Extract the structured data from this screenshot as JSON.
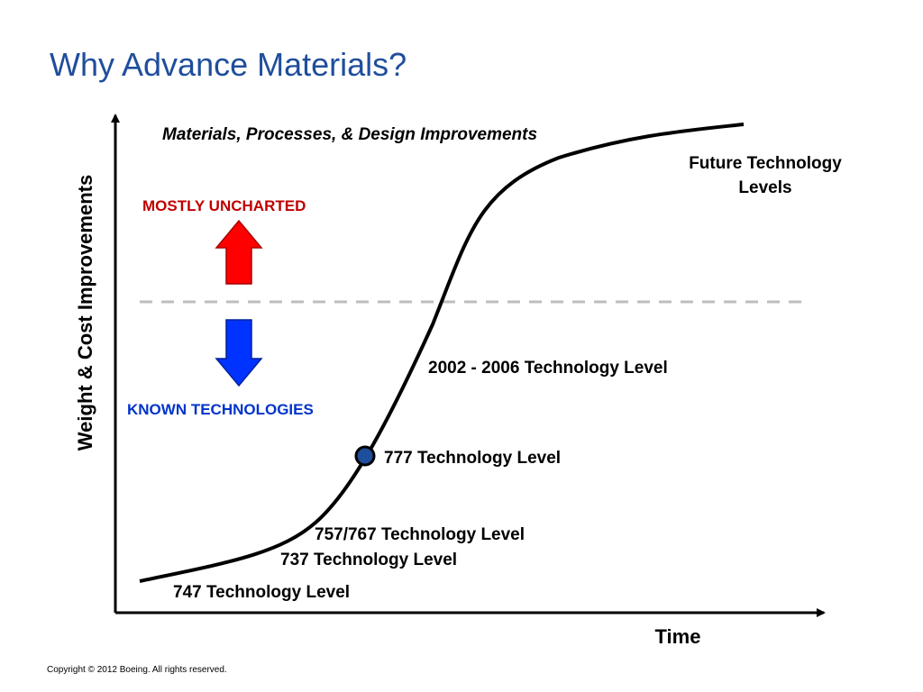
{
  "title": "Why Advance Materials?",
  "subtitle": "Materials, Processes, & Design Improvements",
  "axes": {
    "y_label": "Weight & Cost Improvements",
    "x_label": "Time"
  },
  "zones": {
    "upper": "MOSTLY UNCHARTED",
    "lower": "KNOWN TECHNOLOGIES"
  },
  "levels": {
    "future": [
      "Future Technology",
      "Levels"
    ],
    "l2002": "2002 - 2006 Technology Level",
    "l777": "777 Technology Level",
    "l757": "757/767 Technology Level",
    "l737": "737 Technology Level",
    "l747": "747 Technology Level"
  },
  "footer": "Copyright © 2012 Boeing. All rights reserved."
}
